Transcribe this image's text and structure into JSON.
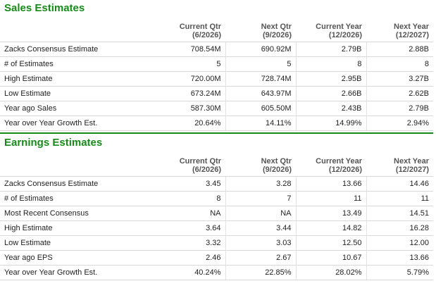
{
  "sales": {
    "title": "Sales Estimates",
    "columns": [
      {
        "line1": "Current Qtr",
        "line2": "(6/2026)"
      },
      {
        "line1": "Next Qtr",
        "line2": "(9/2026)"
      },
      {
        "line1": "Current Year",
        "line2": "(12/2026)"
      },
      {
        "line1": "Next Year",
        "line2": "(12/2027)"
      }
    ],
    "rows": [
      {
        "label": "Zacks Consensus Estimate",
        "values": [
          "708.54M",
          "690.92M",
          "2.79B",
          "2.88B"
        ]
      },
      {
        "label": "# of Estimates",
        "values": [
          "5",
          "5",
          "8",
          "8"
        ]
      },
      {
        "label": "High Estimate",
        "values": [
          "720.00M",
          "728.74M",
          "2.95B",
          "3.27B"
        ]
      },
      {
        "label": "Low Estimate",
        "values": [
          "673.24M",
          "643.97M",
          "2.66B",
          "2.62B"
        ]
      },
      {
        "label": "Year ago Sales",
        "values": [
          "587.30M",
          "605.50M",
          "2.43B",
          "2.79B"
        ]
      },
      {
        "label": "Year over Year Growth Est.",
        "values": [
          "20.64%",
          "14.11%",
          "14.99%",
          "2.94%"
        ]
      }
    ]
  },
  "earnings": {
    "title": "Earnings Estimates",
    "columns": [
      {
        "line1": "Current Qtr",
        "line2": "(6/2026)"
      },
      {
        "line1": "Next Qtr",
        "line2": "(9/2026)"
      },
      {
        "line1": "Current Year",
        "line2": "(12/2026)"
      },
      {
        "line1": "Next Year",
        "line2": "(12/2027)"
      }
    ],
    "rows": [
      {
        "label": "Zacks Consensus Estimate",
        "values": [
          "3.45",
          "3.28",
          "13.66",
          "14.46"
        ]
      },
      {
        "label": "# of Estimates",
        "values": [
          "8",
          "7",
          "11",
          "11"
        ]
      },
      {
        "label": "Most Recent Consensus",
        "values": [
          "NA",
          "NA",
          "13.49",
          "14.51"
        ]
      },
      {
        "label": "High Estimate",
        "values": [
          "3.64",
          "3.44",
          "14.82",
          "16.28"
        ]
      },
      {
        "label": "Low Estimate",
        "values": [
          "3.32",
          "3.03",
          "12.50",
          "12.00"
        ]
      },
      {
        "label": "Year ago EPS",
        "values": [
          "2.46",
          "2.67",
          "10.67",
          "13.66"
        ]
      },
      {
        "label": "Year over Year Growth Est.",
        "values": [
          "40.24%",
          "22.85%",
          "28.02%",
          "5.79%"
        ]
      }
    ]
  }
}
